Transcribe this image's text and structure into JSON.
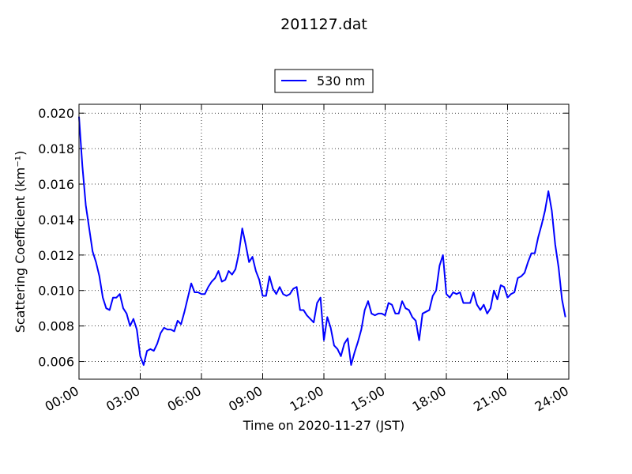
{
  "chart_data": {
    "type": "line",
    "title": "201127.dat",
    "xlabel": "Time on 2020-11-27 (JST)",
    "ylabel": "Scattering Coefficient (km⁻¹)",
    "x": [
      0,
      10,
      20,
      30,
      40,
      50,
      60,
      70,
      80,
      90,
      100,
      110,
      120,
      130,
      140,
      150,
      160,
      170,
      180,
      190,
      200,
      210,
      220,
      230,
      240,
      250,
      260,
      270,
      280,
      290,
      300,
      310,
      320,
      330,
      340,
      350,
      360,
      370,
      380,
      390,
      400,
      410,
      420,
      430,
      440,
      450,
      460,
      470,
      480,
      490,
      500,
      510,
      520,
      530,
      540,
      550,
      560,
      570,
      580,
      590,
      600,
      610,
      620,
      630,
      640,
      650,
      660,
      670,
      680,
      690,
      700,
      710,
      720,
      730,
      740,
      750,
      760,
      770,
      780,
      790,
      800,
      810,
      820,
      830,
      840,
      850,
      860,
      870,
      880,
      890,
      900,
      910,
      920,
      930,
      940,
      950,
      960,
      970,
      980,
      990,
      1000,
      1010,
      1020,
      1030,
      1040,
      1050,
      1060,
      1070,
      1080,
      1090,
      1100,
      1110,
      1120,
      1130,
      1140,
      1150,
      1160,
      1170,
      1180,
      1190,
      1200,
      1210,
      1220,
      1230,
      1240,
      1250,
      1260,
      1270,
      1280,
      1290,
      1300,
      1310,
      1320,
      1330,
      1340,
      1350,
      1360,
      1370,
      1380,
      1390,
      1400,
      1410,
      1420,
      1430
    ],
    "series": [
      {
        "name": "530 nm",
        "color": "#0000ff",
        "values": [
          0.0198,
          0.017,
          0.0148,
          0.0135,
          0.0122,
          0.0116,
          0.0108,
          0.0096,
          0.009,
          0.0089,
          0.0096,
          0.0096,
          0.0098,
          0.009,
          0.0087,
          0.008,
          0.0084,
          0.0078,
          0.0063,
          0.0058,
          0.0066,
          0.0067,
          0.0066,
          0.007,
          0.0076,
          0.0079,
          0.0078,
          0.0078,
          0.0077,
          0.0083,
          0.0081,
          0.0088,
          0.0096,
          0.0104,
          0.0099,
          0.0099,
          0.0098,
          0.0098,
          0.0102,
          0.0105,
          0.0107,
          0.0111,
          0.0105,
          0.0106,
          0.0111,
          0.0109,
          0.0112,
          0.0121,
          0.0135,
          0.0126,
          0.0116,
          0.0119,
          0.0111,
          0.0106,
          0.0097,
          0.0097,
          0.0108,
          0.0101,
          0.0098,
          0.0102,
          0.0098,
          0.0097,
          0.0098,
          0.0101,
          0.0102,
          0.0089,
          0.0089,
          0.0086,
          0.0084,
          0.0082,
          0.0093,
          0.0096,
          0.0072,
          0.0085,
          0.0079,
          0.0069,
          0.0067,
          0.0063,
          0.007,
          0.0073,
          0.0058,
          0.0065,
          0.0071,
          0.0078,
          0.0089,
          0.0094,
          0.0087,
          0.0086,
          0.0087,
          0.0087,
          0.0086,
          0.0093,
          0.0092,
          0.0087,
          0.0087,
          0.0094,
          0.009,
          0.0089,
          0.0085,
          0.0083,
          0.0072,
          0.0087,
          0.0088,
          0.0089,
          0.0097,
          0.01,
          0.0114,
          0.012,
          0.0098,
          0.0096,
          0.0099,
          0.0098,
          0.0099,
          0.0093,
          0.0093,
          0.0093,
          0.0099,
          0.0092,
          0.0089,
          0.0092,
          0.0087,
          0.009,
          0.01,
          0.0095,
          0.0103,
          0.0102,
          0.0096,
          0.0098,
          0.0099,
          0.0107,
          0.0108,
          0.011,
          0.0116,
          0.0121,
          0.0121,
          0.013,
          0.0137,
          0.0145,
          0.0156,
          0.0145,
          0.0126,
          0.0113,
          0.0095,
          0.0085
        ]
      }
    ],
    "xlim": [
      0,
      1440
    ],
    "xticks": [
      {
        "value": 0,
        "label": "00:00"
      },
      {
        "value": 180,
        "label": "03:00"
      },
      {
        "value": 360,
        "label": "06:00"
      },
      {
        "value": 540,
        "label": "09:00"
      },
      {
        "value": 720,
        "label": "12:00"
      },
      {
        "value": 900,
        "label": "15:00"
      },
      {
        "value": 1080,
        "label": "18:00"
      },
      {
        "value": 1260,
        "label": "21:00"
      },
      {
        "value": 1440,
        "label": "24:00"
      }
    ],
    "ylim": [
      0.005,
      0.0205
    ],
    "yticks": [
      0.006,
      0.008,
      {
        "value": 0.01,
        "label": "0.010"
      },
      0.012,
      0.014,
      0.016,
      0.018,
      {
        "value": 0.02,
        "label": "0.020"
      }
    ],
    "grid": true
  }
}
